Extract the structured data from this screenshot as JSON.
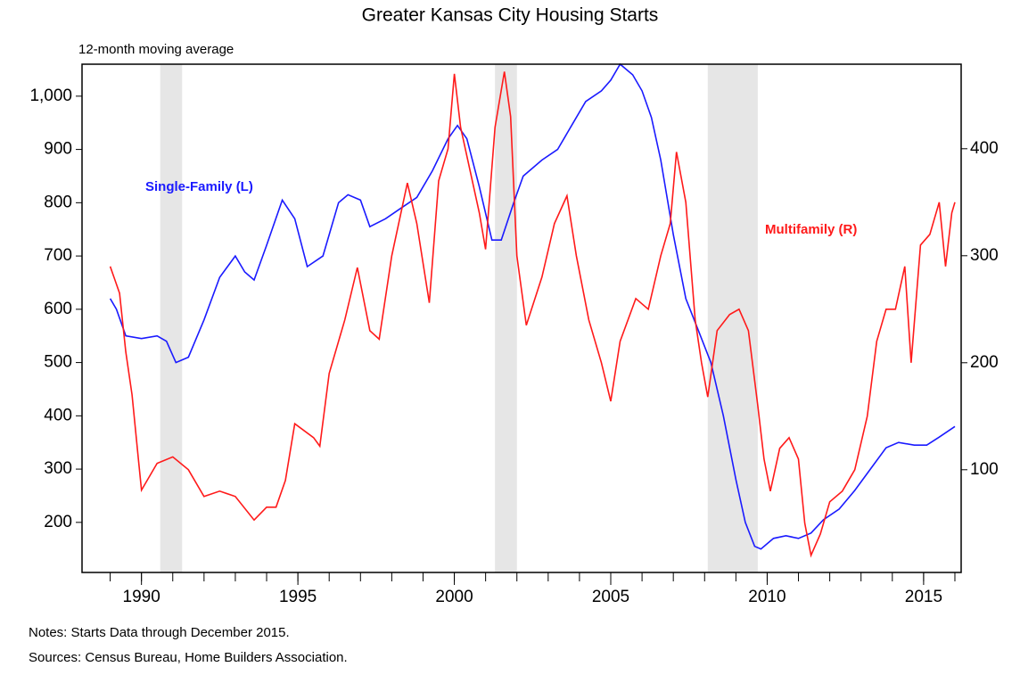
{
  "chart_data": {
    "type": "line",
    "title": "Greater Kansas City Housing Starts",
    "subtitle": "12-month moving average",
    "notes": [
      "Notes: Starts Data through December 2015.",
      "Sources: Census Bureau, Home Builders Association."
    ],
    "xlim": [
      1988.1,
      2016.2
    ],
    "xticks": [
      1990,
      1995,
      2000,
      2005,
      2010,
      2015
    ],
    "xminorticks": [
      1989,
      1990,
      1991,
      1992,
      1993,
      1994,
      1995,
      1996,
      1997,
      1998,
      1999,
      2000,
      2001,
      2002,
      2003,
      2004,
      2005,
      2006,
      2007,
      2008,
      2009,
      2010,
      2011,
      2012,
      2013,
      2014,
      2015,
      2016
    ],
    "ylim": [
      106,
      1060
    ],
    "yticks": [
      200,
      300,
      400,
      500,
      600,
      700,
      800,
      900,
      {
        "value": 1000,
        "label": "1,000"
      }
    ],
    "y2lim": [
      4,
      479
    ],
    "y2ticks": [
      100,
      200,
      300,
      400
    ],
    "grid": false,
    "shaded_periods": [
      [
        1990.6,
        1991.3
      ],
      [
        2001.3,
        2002.0
      ],
      [
        2008.1,
        2009.7
      ]
    ],
    "shade_color": "#e6e6e6",
    "series": [
      {
        "name": "Single-Family (L)",
        "color": "#1a1aff",
        "axis": "y",
        "x": [
          1989.0,
          1989.2,
          1989.5,
          1990.0,
          1990.5,
          1990.8,
          1991.1,
          1991.5,
          1992.0,
          1992.5,
          1993.0,
          1993.3,
          1993.6,
          1994.0,
          1994.5,
          1994.9,
          1995.3,
          1995.8,
          1996.3,
          1996.6,
          1997.0,
          1997.3,
          1997.8,
          1998.3,
          1998.8,
          1999.3,
          1999.8,
          2000.1,
          2000.4,
          2000.8,
          2001.2,
          2001.5,
          2001.9,
          2002.2,
          2002.8,
          2003.3,
          2003.8,
          2004.2,
          2004.7,
          2005.0,
          2005.3,
          2005.7,
          2006.0,
          2006.3,
          2006.6,
          2007.0,
          2007.4,
          2007.8,
          2008.2,
          2008.6,
          2009.0,
          2009.3,
          2009.6,
          2009.8,
          2010.2,
          2010.6,
          2011.0,
          2011.4,
          2011.8,
          2012.3,
          2012.8,
          2013.3,
          2013.8,
          2014.2,
          2014.7,
          2015.1,
          2015.5,
          2016.0
        ],
        "values": [
          620,
          600,
          550,
          545,
          550,
          540,
          500,
          510,
          580,
          660,
          700,
          670,
          655,
          720,
          805,
          770,
          680,
          700,
          800,
          815,
          805,
          755,
          770,
          790,
          810,
          860,
          920,
          945,
          920,
          830,
          730,
          730,
          800,
          850,
          880,
          900,
          950,
          990,
          1010,
          1030,
          1060,
          1040,
          1010,
          960,
          880,
          740,
          620,
          560,
          500,
          400,
          280,
          200,
          155,
          150,
          170,
          175,
          170,
          180,
          205,
          225,
          260,
          300,
          340,
          350,
          345,
          345,
          360,
          380
        ]
      },
      {
        "name": "Multifamily (R)",
        "color": "#ff1a1a",
        "axis": "y2",
        "x": [
          1989.0,
          1989.3,
          1989.5,
          1989.7,
          1989.9,
          1990.0,
          1990.5,
          1991.0,
          1991.5,
          1992.0,
          1992.5,
          1993.0,
          1993.6,
          1994.0,
          1994.3,
          1994.6,
          1994.9,
          1995.5,
          1995.7,
          1996.0,
          1996.5,
          1996.9,
          1997.3,
          1997.6,
          1998.0,
          1998.5,
          1998.8,
          1999.2,
          1999.5,
          1999.8,
          2000.0,
          2000.2,
          2000.5,
          2000.8,
          2001.0,
          2001.3,
          2001.6,
          2001.8,
          2002.0,
          2002.3,
          2002.8,
          2003.2,
          2003.6,
          2003.9,
          2004.3,
          2004.7,
          2005.0,
          2005.3,
          2005.8,
          2006.2,
          2006.6,
          2006.9,
          2007.1,
          2007.4,
          2007.7,
          2007.9,
          2008.1,
          2008.4,
          2008.8,
          2009.1,
          2009.4,
          2009.7,
          2009.9,
          2010.1,
          2010.4,
          2010.7,
          2011.0,
          2011.2,
          2011.4,
          2011.7,
          2012.0,
          2012.4,
          2012.8,
          2013.2,
          2013.5,
          2013.8,
          2014.1,
          2014.4,
          2014.6,
          2014.9,
          2015.2,
          2015.5,
          2015.7,
          2015.9,
          2016.0
        ],
        "values": [
          290,
          265,
          210,
          170,
          110,
          81,
          106,
          112,
          100,
          75,
          80,
          75,
          53,
          65,
          65,
          90,
          143,
          130,
          122,
          190,
          240,
          289,
          230,
          222,
          300,
          368,
          330,
          256,
          370,
          400,
          470,
          420,
          380,
          340,
          306,
          420,
          472,
          430,
          300,
          235,
          280,
          330,
          356,
          300,
          240,
          200,
          164,
          220,
          260,
          250,
          300,
          330,
          397,
          350,
          240,
          200,
          168,
          230,
          245,
          250,
          230,
          160,
          110,
          80,
          120,
          130,
          110,
          50,
          20,
          40,
          70,
          80,
          100,
          150,
          220,
          250,
          250,
          290,
          200,
          310,
          320,
          350,
          290,
          340,
          350
        ]
      }
    ]
  }
}
